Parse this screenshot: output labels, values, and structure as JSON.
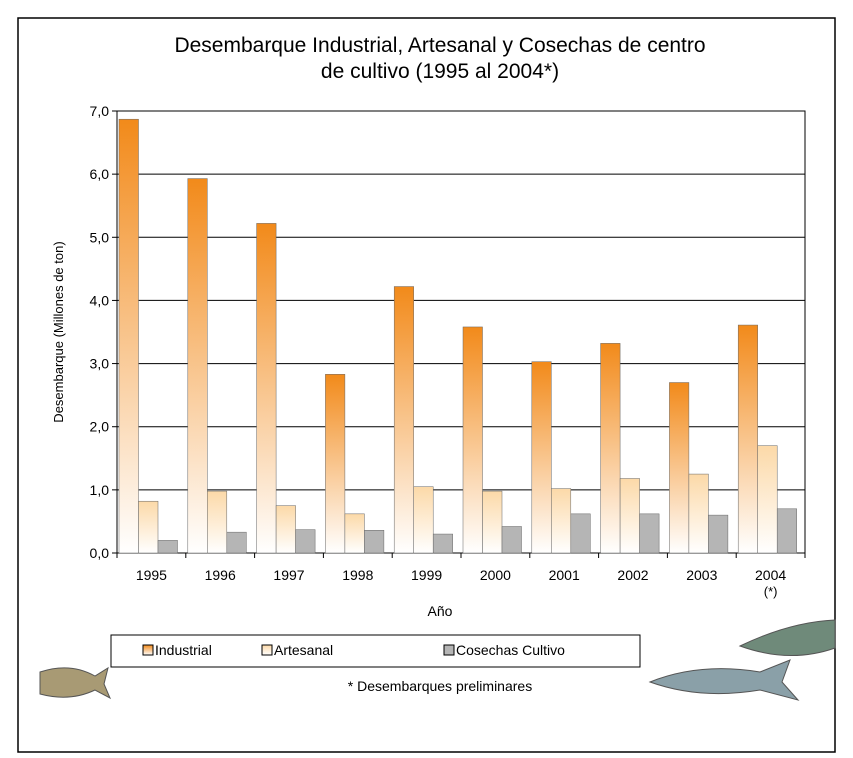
{
  "chart_data": {
    "type": "bar",
    "title": "Desembarque Industrial, Artesanal y Cosechas de centro",
    "title_line2": "de cultivo (1995 al 2004*)",
    "ylabel": "Desembarque (Millones de ton)",
    "xlabel": "Año",
    "categories": [
      "1995",
      "1996",
      "1997",
      "1998",
      "1999",
      "2000",
      "2001",
      "2002",
      "2003",
      "2004"
    ],
    "last_category_mark": "(*)",
    "series": [
      {
        "name": "Industrial",
        "color": "#f28a1a",
        "values": [
          6.87,
          5.93,
          5.22,
          2.83,
          4.22,
          3.58,
          3.03,
          3.32,
          2.7,
          3.61
        ]
      },
      {
        "name": "Artesanal",
        "color": "#fcd9a8",
        "values": [
          0.82,
          0.98,
          0.75,
          0.62,
          1.05,
          0.98,
          1.02,
          1.18,
          1.25,
          1.7
        ]
      },
      {
        "name": "Cosechas Cultivo",
        "color": "#b5b5b5",
        "values": [
          0.2,
          0.33,
          0.37,
          0.36,
          0.3,
          0.42,
          0.62,
          0.62,
          0.6,
          0.7
        ]
      }
    ],
    "ylim": [
      0,
      7
    ],
    "yticks": [
      {
        "value": 0,
        "label": "0,0"
      },
      {
        "value": 1,
        "label": "1,0"
      },
      {
        "value": 2,
        "label": "2,0"
      },
      {
        "value": 3,
        "label": "3,0"
      },
      {
        "value": 4,
        "label": "4,0"
      },
      {
        "value": 5,
        "label": "5,0"
      },
      {
        "value": 6,
        "label": "6,0"
      },
      {
        "value": 7,
        "label": "7,0"
      }
    ],
    "grid": true,
    "footnote": "* Desembarques preliminares"
  }
}
